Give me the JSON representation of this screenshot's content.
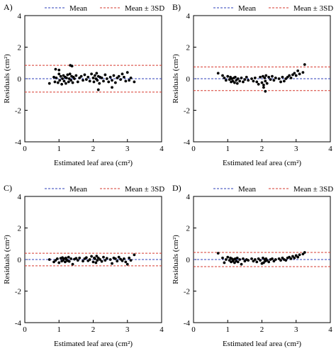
{
  "legend": {
    "mean_label": "Mean",
    "sd_label": "Mean ± 3SD",
    "mean_color": "#2e3fb8",
    "sd_color": "#d63a2f"
  },
  "colors": {
    "points": "#000000",
    "axis": "#000000"
  },
  "chart_data": [
    {
      "panel": "A)",
      "type": "scatter",
      "xlabel": "Estimated leaf area (cm²)",
      "ylabel": "Residuals (cm²)",
      "xlim": [
        0,
        4
      ],
      "ylim": [
        -4,
        4
      ],
      "xticks": [
        0,
        1,
        2,
        3,
        4
      ],
      "yticks": [
        -4,
        -2,
        0,
        2,
        4
      ],
      "mean": 0.0,
      "upper": 0.85,
      "lower": -0.85,
      "x": [
        0.72,
        0.85,
        0.88,
        0.92,
        0.97,
        1.0,
        1.02,
        1.05,
        1.08,
        1.1,
        1.13,
        1.15,
        1.18,
        1.2,
        1.22,
        1.25,
        1.28,
        1.3,
        1.32,
        1.35,
        1.37,
        1.4,
        1.42,
        1.45,
        1.5,
        1.55,
        1.6,
        1.65,
        1.7,
        1.75,
        1.8,
        1.85,
        1.9,
        1.95,
        2.0,
        2.02,
        2.05,
        2.08,
        2.1,
        2.12,
        2.15,
        2.18,
        2.2,
        2.25,
        2.3,
        2.35,
        2.4,
        2.45,
        2.5,
        2.55,
        2.6,
        2.65,
        2.7,
        2.75,
        2.8,
        2.85,
        2.9,
        2.95,
        3.0,
        3.05,
        3.1,
        3.2,
        1.33,
        1.38,
        0.9,
        1.0,
        2.15,
        2.55
      ],
      "y": [
        -0.3,
        0.1,
        -0.2,
        0.05,
        -0.25,
        0.3,
        -0.1,
        0.15,
        -0.35,
        0.0,
        0.2,
        -0.15,
        0.1,
        -0.3,
        0.05,
        0.25,
        -0.2,
        0.0,
        0.3,
        -0.1,
        0.15,
        -0.25,
        0.1,
        0.0,
        0.2,
        -0.2,
        0.05,
        0.15,
        -0.1,
        0.25,
        -0.05,
        0.1,
        -0.15,
        0.3,
        0.05,
        -0.2,
        0.2,
        0.0,
        0.35,
        -0.1,
        0.15,
        -0.3,
        0.1,
        0.05,
        -0.15,
        0.25,
        0.0,
        -0.2,
        0.1,
        -0.1,
        0.2,
        -0.25,
        0.05,
        0.15,
        -0.05,
        0.3,
        0.1,
        -0.15,
        0.4,
        -0.1,
        0.05,
        -0.2,
        0.85,
        0.8,
        0.6,
        0.55,
        -0.7,
        -0.55
      ]
    },
    {
      "panel": "B)",
      "type": "scatter",
      "xlabel": "Estimated leaf area (cm²)",
      "ylabel": "Residuals (cm²)",
      "xlim": [
        0,
        4
      ],
      "ylim": [
        -4,
        4
      ],
      "xticks": [
        0,
        1,
        2,
        3,
        4
      ],
      "yticks": [
        -4,
        -2,
        0,
        2,
        4
      ],
      "mean": 0.0,
      "upper": 0.75,
      "lower": -0.75,
      "x": [
        0.72,
        0.85,
        0.9,
        0.95,
        1.0,
        1.05,
        1.08,
        1.1,
        1.12,
        1.15,
        1.18,
        1.2,
        1.22,
        1.25,
        1.28,
        1.3,
        1.35,
        1.4,
        1.45,
        1.5,
        1.55,
        1.6,
        1.7,
        1.75,
        1.8,
        1.85,
        1.9,
        1.95,
        2.0,
        2.03,
        2.05,
        2.08,
        2.1,
        2.12,
        2.15,
        2.2,
        2.25,
        2.3,
        2.35,
        2.4,
        2.5,
        2.55,
        2.6,
        2.65,
        2.7,
        2.75,
        2.8,
        2.85,
        2.9,
        2.95,
        3.0,
        3.05,
        3.1,
        3.2,
        3.25,
        2.1,
        2.05
      ],
      "y": [
        0.35,
        0.2,
        0.05,
        -0.1,
        0.15,
        -0.05,
        0.1,
        -0.2,
        0.0,
        -0.15,
        0.05,
        -0.25,
        0.1,
        -0.1,
        -0.3,
        0.0,
        -0.15,
        0.05,
        -0.2,
        -0.05,
        0.1,
        -0.1,
        0.0,
        -0.15,
        0.05,
        -0.2,
        -0.35,
        0.1,
        -0.25,
        0.15,
        -0.4,
        0.05,
        -0.15,
        0.2,
        -0.3,
        0.1,
        -0.05,
        0.15,
        -0.1,
        0.05,
        0.0,
        -0.2,
        0.1,
        -0.15,
        0.0,
        0.1,
        0.2,
        0.05,
        0.25,
        0.35,
        0.2,
        0.5,
        0.3,
        0.4,
        0.9,
        -0.8,
        -0.55
      ]
    },
    {
      "panel": "C)",
      "type": "scatter",
      "xlabel": "Estimated leaf area (cm²)",
      "ylabel": "Residuals (cm²)",
      "xlim": [
        0,
        4
      ],
      "ylim": [
        -4,
        4
      ],
      "xticks": [
        0,
        1,
        2,
        3,
        4
      ],
      "yticks": [
        -4,
        -2,
        0,
        2,
        4
      ],
      "mean": 0.0,
      "upper": 0.4,
      "lower": -0.4,
      "x": [
        0.72,
        0.85,
        0.9,
        0.95,
        1.0,
        1.05,
        1.08,
        1.1,
        1.12,
        1.15,
        1.18,
        1.2,
        1.22,
        1.25,
        1.28,
        1.3,
        1.35,
        1.4,
        1.45,
        1.5,
        1.55,
        1.6,
        1.7,
        1.75,
        1.8,
        1.85,
        1.9,
        1.95,
        2.0,
        2.03,
        2.05,
        2.08,
        2.1,
        2.12,
        2.15,
        2.2,
        2.25,
        2.3,
        2.35,
        2.4,
        2.5,
        2.55,
        2.6,
        2.65,
        2.7,
        2.75,
        2.8,
        2.85,
        2.9,
        2.95,
        3.0,
        3.05,
        3.1,
        3.2
      ],
      "y": [
        0.0,
        -0.15,
        -0.05,
        0.05,
        -0.2,
        0.08,
        -0.1,
        0.12,
        -0.05,
        0.05,
        -0.15,
        0.1,
        0.0,
        -0.08,
        0.15,
        -0.12,
        0.05,
        -0.3,
        0.02,
        0.08,
        -0.05,
        0.1,
        -0.1,
        0.05,
        0.12,
        -0.08,
        0.0,
        0.2,
        -0.15,
        0.1,
        0.05,
        -0.2,
        0.22,
        -0.05,
        0.1,
        0.0,
        -0.12,
        0.15,
        -0.05,
        0.08,
        0.0,
        -0.25,
        0.1,
        0.05,
        -0.1,
        0.15,
        0.02,
        -0.08,
        0.05,
        -0.15,
        -0.3,
        0.1,
        -0.05,
        0.3
      ]
    },
    {
      "panel": "D)",
      "type": "scatter",
      "xlabel": "Estimated leaf area (cm²)",
      "ylabel": "Residuals (cm²)",
      "xlim": [
        0,
        4
      ],
      "ylim": [
        -4,
        4
      ],
      "xticks": [
        0,
        1,
        2,
        3,
        4
      ],
      "yticks": [
        -4,
        -2,
        0,
        2,
        4
      ],
      "mean": 0.0,
      "upper": 0.45,
      "lower": -0.45,
      "x": [
        0.72,
        0.85,
        0.9,
        0.95,
        1.0,
        1.05,
        1.08,
        1.1,
        1.12,
        1.15,
        1.18,
        1.2,
        1.22,
        1.25,
        1.28,
        1.3,
        1.35,
        1.4,
        1.45,
        1.5,
        1.55,
        1.6,
        1.7,
        1.75,
        1.8,
        1.85,
        1.9,
        1.95,
        2.0,
        2.03,
        2.05,
        2.08,
        2.1,
        2.12,
        2.15,
        2.2,
        2.25,
        2.3,
        2.35,
        2.4,
        2.5,
        2.55,
        2.6,
        2.65,
        2.7,
        2.75,
        2.8,
        2.85,
        2.9,
        2.95,
        3.0,
        3.05,
        3.1,
        3.2,
        3.25
      ],
      "y": [
        0.4,
        0.1,
        -0.2,
        0.0,
        0.15,
        -0.05,
        0.1,
        -0.15,
        0.05,
        -0.1,
        0.0,
        -0.2,
        0.05,
        -0.1,
        0.1,
        -0.15,
        0.0,
        -0.3,
        0.05,
        -0.1,
        0.0,
        -0.05,
        0.05,
        -0.1,
        0.0,
        -0.15,
        0.05,
        -0.05,
        -0.25,
        0.1,
        -0.2,
        0.0,
        -0.1,
        0.05,
        -0.05,
        -0.15,
        0.0,
        0.05,
        -0.1,
        0.0,
        0.05,
        -0.05,
        0.1,
        0.0,
        -0.05,
        0.1,
        0.15,
        0.05,
        0.2,
        0.1,
        0.25,
        0.15,
        0.3,
        0.35,
        0.45
      ]
    }
  ]
}
